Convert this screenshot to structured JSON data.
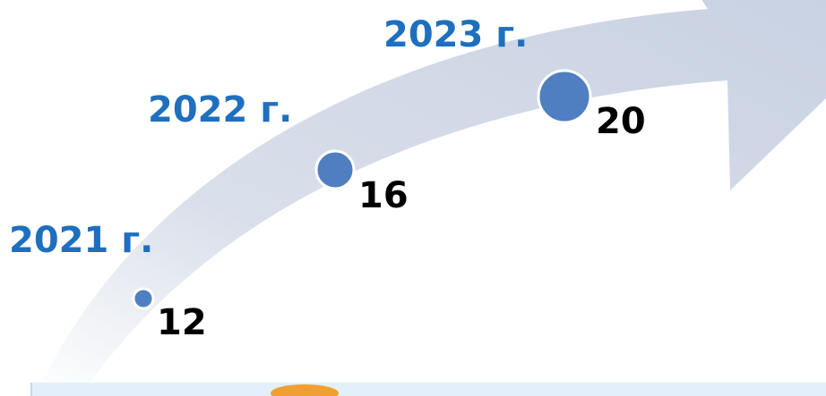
{
  "items": [
    {
      "year": "2021 г.",
      "value": "12"
    },
    {
      "year": "2022 г.",
      "value": "16"
    },
    {
      "year": "2023 г.",
      "value": "20"
    }
  ]
}
